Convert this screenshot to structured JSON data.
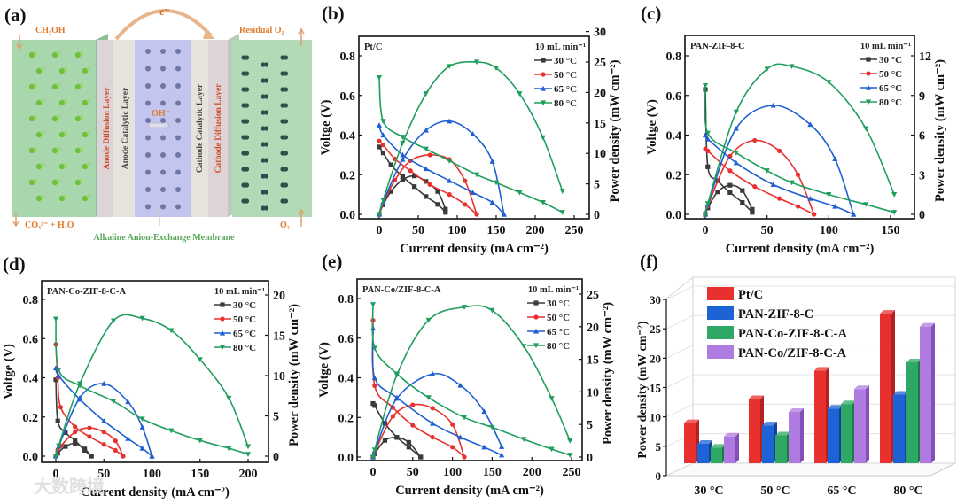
{
  "panel_a": {
    "letter": "(a)",
    "electron": "e⁻",
    "fuel_in": "CH₃OH",
    "residual": "Residual O₂",
    "products": "CO₃²⁻ + H₂O",
    "oxygen_in": "O₂",
    "ion": "OH⁻",
    "membrane_caption": "Alkaline Anion-Exchange Membrane",
    "layers": [
      "Anode Diffusion Layer",
      "Anode Catalytic Layer",
      "Cathode Catalytic Layer",
      "Cathode Diffusion Layer"
    ]
  },
  "watermark": "大数跨境",
  "colors": {
    "t30": "#3a3a3a",
    "t50": "#e8312f",
    "t65": "#1e5fd1",
    "t80": "#1f9e5e"
  },
  "chart_data": [
    {
      "panel": "(b)",
      "type": "line",
      "sample": "Pt/C",
      "flow": "10 mL min⁻¹",
      "xlabel": "Current density (mA cm⁻²)",
      "ylabel": "Voltge (V)",
      "y2label": "Power density (mW cm⁻²)",
      "xticks": [
        0,
        50,
        100,
        150,
        200,
        250
      ],
      "yticks": [
        "0.0",
        "0.2",
        "0.4",
        "0.6",
        "0.8"
      ],
      "y2ticks": [
        0,
        5,
        10,
        15,
        20,
        25,
        30
      ],
      "series": [
        {
          "name": "30 °C",
          "color": "#3a3a3a",
          "marker": "square",
          "x": [
            0,
            5,
            15,
            30,
            45,
            60,
            75,
            85
          ],
          "voltage": [
            0.34,
            0.31,
            0.25,
            0.19,
            0.14,
            0.09,
            0.05,
            0.01
          ],
          "power": [
            0,
            1.55,
            3.75,
            5.7,
            6.3,
            5.4,
            3.75,
            0.85
          ]
        },
        {
          "name": "50 °C",
          "color": "#e8312f",
          "marker": "circle",
          "x": [
            0,
            5,
            20,
            40,
            65,
            90,
            110,
            125
          ],
          "voltage": [
            0.37,
            0.35,
            0.28,
            0.22,
            0.15,
            0.1,
            0.05,
            0.0
          ],
          "power": [
            0,
            1.75,
            5.6,
            8.8,
            9.75,
            9,
            5.5,
            0
          ]
        },
        {
          "name": "65 °C",
          "color": "#1e5fd1",
          "marker": "triangle",
          "x": [
            0,
            5,
            30,
            60,
            90,
            120,
            145,
            160
          ],
          "voltage": [
            0.45,
            0.4,
            0.3,
            0.23,
            0.17,
            0.11,
            0.06,
            0.0
          ],
          "power": [
            0,
            2,
            9,
            13.8,
            15.3,
            13.2,
            8.7,
            0
          ]
        },
        {
          "name": "80 °C",
          "color": "#1f9e5e",
          "marker": "down-triangle",
          "x": [
            0,
            5,
            30,
            60,
            90,
            125,
            150,
            180,
            210,
            235
          ],
          "voltage": [
            0.69,
            0.47,
            0.39,
            0.33,
            0.27,
            0.2,
            0.16,
            0.11,
            0.06,
            0.01
          ],
          "power": [
            0,
            2.35,
            11.7,
            19.8,
            24.3,
            25,
            24,
            19.8,
            12.6,
            3.8
          ]
        }
      ]
    },
    {
      "panel": "(c)",
      "type": "line",
      "sample": "PAN-ZIF-8-C",
      "flow": "10 mL min⁻¹",
      "xlabel": "Current density (mA cm⁻²)",
      "ylabel": "Voltge (V)",
      "y2label": "Power density (mW cm⁻²)",
      "xticks": [
        0,
        50,
        100,
        150
      ],
      "yticks": [
        "0.0",
        "0.2",
        "0.4",
        "0.6",
        "0.8"
      ],
      "y2ticks": [
        0,
        3,
        6,
        9,
        12
      ],
      "series": [
        {
          "name": "30 °C",
          "color": "#3a3a3a",
          "marker": "square",
          "x": [
            0,
            2,
            10,
            20,
            30,
            38
          ],
          "voltage": [
            0.63,
            0.24,
            0.17,
            0.11,
            0.06,
            0.01
          ],
          "power": [
            0,
            0.48,
            1.7,
            2.2,
            1.8,
            0.38
          ]
        },
        {
          "name": "50 °C",
          "color": "#e8312f",
          "marker": "circle",
          "x": [
            0,
            2,
            20,
            40,
            60,
            75,
            88
          ],
          "voltage": [
            0.33,
            0.32,
            0.22,
            0.14,
            0.08,
            0.04,
            0.0
          ],
          "power": [
            0,
            0.64,
            4.4,
            5.6,
            4.8,
            3,
            0
          ]
        },
        {
          "name": "65 °C",
          "color": "#1e5fd1",
          "marker": "triangle",
          "x": [
            0,
            2,
            25,
            55,
            85,
            105,
            120
          ],
          "voltage": [
            0.4,
            0.38,
            0.26,
            0.15,
            0.08,
            0.04,
            0.0
          ],
          "power": [
            0,
            0.76,
            6.5,
            8.25,
            6.8,
            4.2,
            0
          ]
        },
        {
          "name": "80 °C",
          "color": "#1f9e5e",
          "marker": "down-triangle",
          "x": [
            0,
            2,
            25,
            50,
            70,
            100,
            130,
            153
          ],
          "voltage": [
            0.65,
            0.41,
            0.31,
            0.22,
            0.16,
            0.1,
            0.05,
            0.01
          ],
          "power": [
            0,
            0.82,
            7.75,
            11,
            11.2,
            10,
            6.5,
            1.5
          ]
        }
      ]
    },
    {
      "panel": "(d)",
      "type": "line",
      "sample": "PAN-Co-ZIF-8-C-A",
      "flow": "10 mL min⁻¹",
      "xlabel": "Current density (mA cm⁻²)",
      "ylabel": "Voltge (V)",
      "y2label": "Power density (mW cm⁻²)",
      "xticks": [
        0,
        50,
        100,
        150,
        200
      ],
      "yticks": [
        "0.0",
        "0.2",
        "0.4",
        "0.6",
        "0.8"
      ],
      "y2ticks": [
        0,
        5,
        10,
        15,
        20
      ],
      "series": [
        {
          "name": "30 °C",
          "color": "#3a3a3a",
          "marker": "square",
          "x": [
            0,
            2,
            10,
            20,
            30,
            37
          ],
          "voltage": [
            0.39,
            0.18,
            0.12,
            0.08,
            0.03,
            0.0
          ],
          "power": [
            0,
            0.36,
            1.2,
            1.6,
            0.9,
            0
          ]
        },
        {
          "name": "50 °C",
          "color": "#e8312f",
          "marker": "circle",
          "x": [
            0,
            2,
            5,
            20,
            35,
            50,
            62,
            70
          ],
          "voltage": [
            0.57,
            0.4,
            0.25,
            0.15,
            0.1,
            0.06,
            0.03,
            0.0
          ],
          "power": [
            0,
            0.8,
            1.25,
            3,
            3.5,
            3,
            1.9,
            0
          ]
        },
        {
          "name": "65 °C",
          "color": "#1e5fd1",
          "marker": "triangle",
          "x": [
            0,
            3,
            25,
            50,
            75,
            90,
            100
          ],
          "voltage": [
            0.45,
            0.41,
            0.29,
            0.18,
            0.09,
            0.04,
            0.0
          ],
          "power": [
            0,
            1.2,
            7.25,
            9,
            6.75,
            3.6,
            0
          ]
        },
        {
          "name": "80 °C",
          "color": "#1f9e5e",
          "marker": "down-triangle",
          "x": [
            0,
            3,
            25,
            60,
            90,
            120,
            150,
            180,
            200
          ],
          "voltage": [
            0.7,
            0.44,
            0.36,
            0.28,
            0.19,
            0.13,
            0.08,
            0.04,
            0.01
          ],
          "power": [
            0,
            1.3,
            9,
            16.8,
            17.1,
            15.6,
            12,
            7.2,
            1.2
          ]
        }
      ]
    },
    {
      "panel": "(e)",
      "type": "line",
      "sample": "PAN-Co/ZIF-8-C-A",
      "flow": "10 mL min⁻¹",
      "xlabel": "Current density (mA cm⁻²)",
      "ylabel": "Voltge (V)",
      "y2label": "Power density (mW cm⁻²)",
      "xticks": [
        0,
        50,
        100,
        150,
        200,
        250
      ],
      "yticks": [
        "0.0",
        "0.2",
        "0.4",
        "0.6",
        "0.8"
      ],
      "y2ticks": [
        0,
        5,
        10,
        15,
        20,
        25
      ],
      "series": [
        {
          "name": "30 °C",
          "color": "#3a3a3a",
          "marker": "square",
          "x": [
            0,
            2,
            15,
            30,
            45,
            60
          ],
          "voltage": [
            0.27,
            0.26,
            0.17,
            0.1,
            0.05,
            0.0
          ],
          "power": [
            0,
            0.5,
            2.55,
            3,
            2.25,
            0
          ]
        },
        {
          "name": "50 °C",
          "color": "#e8312f",
          "marker": "circle",
          "x": [
            0,
            2,
            25,
            50,
            75,
            100,
            115
          ],
          "voltage": [
            0.69,
            0.36,
            0.25,
            0.16,
            0.1,
            0.05,
            0.0
          ],
          "power": [
            0,
            0.7,
            6.25,
            8,
            7.5,
            5,
            0
          ]
        },
        {
          "name": "65 °C",
          "color": "#1e5fd1",
          "marker": "triangle",
          "x": [
            0,
            2,
            30,
            75,
            110,
            140,
            162
          ],
          "voltage": [
            0.65,
            0.4,
            0.3,
            0.17,
            0.1,
            0.05,
            0.01
          ],
          "power": [
            0,
            0.8,
            9,
            12.75,
            11,
            7,
            1.6
          ]
        },
        {
          "name": "80 °C",
          "color": "#1f9e5e",
          "marker": "down-triangle",
          "x": [
            0,
            2,
            30,
            70,
            115,
            150,
            190,
            225,
            248
          ],
          "voltage": [
            0.77,
            0.55,
            0.42,
            0.3,
            0.2,
            0.15,
            0.09,
            0.04,
            0.01
          ],
          "power": [
            0,
            1.1,
            12.6,
            21,
            23,
            22.5,
            17,
            9,
            2.5
          ]
        }
      ]
    },
    {
      "panel": "(f)",
      "type": "bar",
      "categories": [
        "30 °C",
        "50 °C",
        "65 °C",
        "80 °C"
      ],
      "ylabel": "Power density (mW cm⁻²)",
      "ylim": [
        0,
        30
      ],
      "yticks": [
        0,
        5,
        10,
        15,
        20,
        25,
        30
      ],
      "series": [
        {
          "name": "Pt/C",
          "color": "#e8312f",
          "values": [
            7.2,
            11.5,
            16.6,
            26.8
          ]
        },
        {
          "name": "PAN-ZIF-8-C",
          "color": "#1e63d6",
          "values": [
            3.5,
            6.8,
            9.8,
            12.3
          ]
        },
        {
          "name": "PAN-Co-ZIF-8-C-A",
          "color": "#2ea864",
          "values": [
            2.8,
            5.0,
            10.6,
            18.1
          ]
        },
        {
          "name": "PAN-Co/ZIF-8-C-A",
          "color": "#b07be0",
          "values": [
            4.8,
            9.2,
            13.3,
            24.5
          ]
        }
      ]
    }
  ]
}
